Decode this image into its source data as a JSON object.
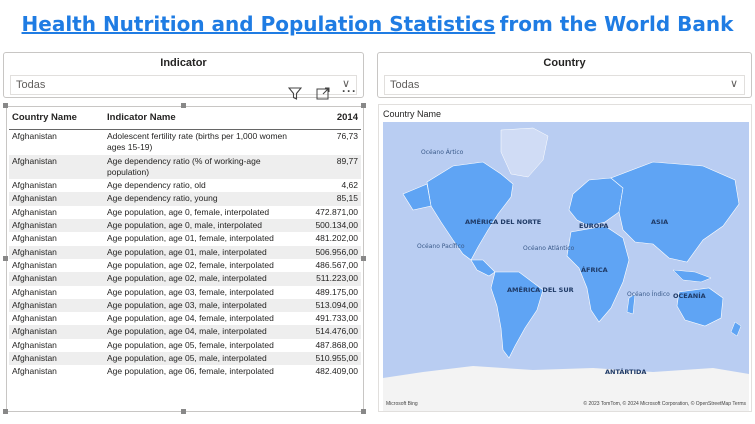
{
  "header": {
    "title_link": "Health Nutrition and Population Statistics",
    "title_rest": "from the World Bank"
  },
  "slicers": {
    "indicator": {
      "title": "Indicator",
      "value": "Todas"
    },
    "country": {
      "title": "Country",
      "value": "Todas"
    }
  },
  "table": {
    "columns": [
      "Country Name",
      "Indicator Name",
      "2014"
    ],
    "rows": [
      [
        "Afghanistan",
        "Adolescent fertility rate (births per 1,000 women ages 15-19)",
        "76,73"
      ],
      [
        "Afghanistan",
        "Age dependency ratio (% of working-age population)",
        "89,77"
      ],
      [
        "Afghanistan",
        "Age dependency ratio, old",
        "4,62"
      ],
      [
        "Afghanistan",
        "Age dependency ratio, young",
        "85,15"
      ],
      [
        "Afghanistan",
        "Age population, age 0, female, interpolated",
        "472.871,00"
      ],
      [
        "Afghanistan",
        "Age population, age 0, male, interpolated",
        "500.134,00"
      ],
      [
        "Afghanistan",
        "Age population, age 01, female, interpolated",
        "481.202,00"
      ],
      [
        "Afghanistan",
        "Age population, age 01, male, interpolated",
        "506.956,00"
      ],
      [
        "Afghanistan",
        "Age population, age 02, female, interpolated",
        "486.567,00"
      ],
      [
        "Afghanistan",
        "Age population, age 02, male, interpolated",
        "511.223,00"
      ],
      [
        "Afghanistan",
        "Age population, age 03, female, interpolated",
        "489.175,00"
      ],
      [
        "Afghanistan",
        "Age population, age 03, male, interpolated",
        "513.094,00"
      ],
      [
        "Afghanistan",
        "Age population, age 04, female, interpolated",
        "491.733,00"
      ],
      [
        "Afghanistan",
        "Age population, age 04, male, interpolated",
        "514.476,00"
      ],
      [
        "Afghanistan",
        "Age population, age 05, female, interpolated",
        "487.868,00"
      ],
      [
        "Afghanistan",
        "Age population, age 05, male, interpolated",
        "510.955,00"
      ],
      [
        "Afghanistan",
        "Age population, age 06, female, interpolated",
        "482.409,00"
      ]
    ]
  },
  "map": {
    "title": "Country Name",
    "labels": {
      "oceano_artico": "Océano Ártico",
      "america_norte": "AMÉRICA DEL NORTE",
      "europa": "EUROPA",
      "asia": "ASIA",
      "oceano_pacifico": "Océano Pacífico",
      "oceano_atlantico": "Océano Atlántico",
      "africa": "ÁFRICA",
      "america_sur": "AMÉRICA DEL SUR",
      "oceano_indico": "Océano Índico",
      "oceania": "OCEANÍA",
      "antartida": "ANTÁRTIDA"
    },
    "footer_left": "Microsoft Bing",
    "footer_right": "© 2023 TomTom, © 2024 Microsoft Corporation, © OpenStreetMap  Terms"
  },
  "colors": {
    "accent": "#1f7ce3",
    "map_fill": "#5fa4f4",
    "ocean": "#b9cdf2",
    "antarctica": "#f3f3f3"
  }
}
